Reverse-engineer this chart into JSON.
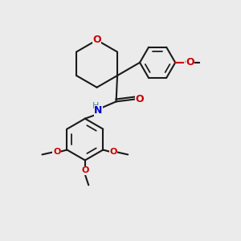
{
  "bg_color": "#ebebeb",
  "bond_color": "#1a1a1a",
  "oxygen_color": "#cc0000",
  "nitrogen_color": "#0000cc",
  "hydrogen_color": "#3a8a8a",
  "bond_width": 1.5,
  "figsize": [
    3.0,
    3.0
  ],
  "dpi": 100,
  "xlim": [
    0,
    10
  ],
  "ylim": [
    0,
    10
  ]
}
